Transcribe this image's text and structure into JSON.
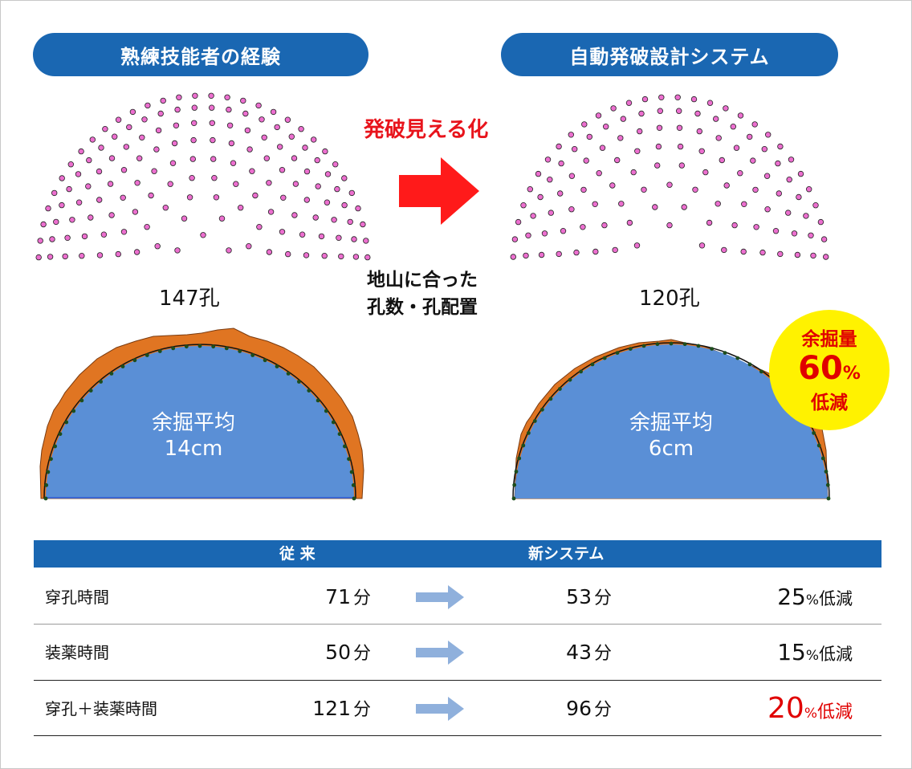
{
  "headers": {
    "left": "熟練技能者の経験",
    "right": "自動発破設計システム"
  },
  "center": {
    "visualize": "発破見える化",
    "fit_line1": "地山に合った",
    "fit_line2": "孔数・孔配置"
  },
  "left_pattern": {
    "holes_label": "147孔",
    "hole_count": 147
  },
  "right_pattern": {
    "holes_label": "120孔",
    "hole_count": 120
  },
  "left_tunnel": {
    "label_line1": "余掘平均",
    "label_line2": "14cm"
  },
  "right_tunnel": {
    "label_line1": "余掘平均",
    "label_line2": "6cm"
  },
  "badge": {
    "line1": "余掘量",
    "value": "60",
    "pct": "%",
    "line3": "低減"
  },
  "table": {
    "col_conventional": "従 来",
    "col_new": "新システム",
    "unit": "分",
    "rows": [
      {
        "name": "穿孔時間",
        "before": "71",
        "after": "53",
        "reduction": "25",
        "pct": "%",
        "reduction_label": "低減"
      },
      {
        "name": "装薬時間",
        "before": "50",
        "after": "43",
        "reduction": "15",
        "pct": "%",
        "reduction_label": "低減"
      },
      {
        "name": "穿孔＋装薬時間",
        "before": "121",
        "after": "96",
        "reduction": "20",
        "pct": "%",
        "reduction_label": "低減"
      }
    ]
  },
  "colors": {
    "header_blue": "#1a67b2",
    "hole_pink": "#ec6fcf",
    "arrow_red": "#ff1a1a",
    "tunnel_blue": "#5a8fd6",
    "overbreak_orange": "#e07522",
    "badge_yellow": "#fff200",
    "table_arrow": "#8fb0dc",
    "highlight_red": "#e00000"
  },
  "icons": {
    "big_arrow": "right-arrow",
    "row_arrow": "right-arrow"
  }
}
